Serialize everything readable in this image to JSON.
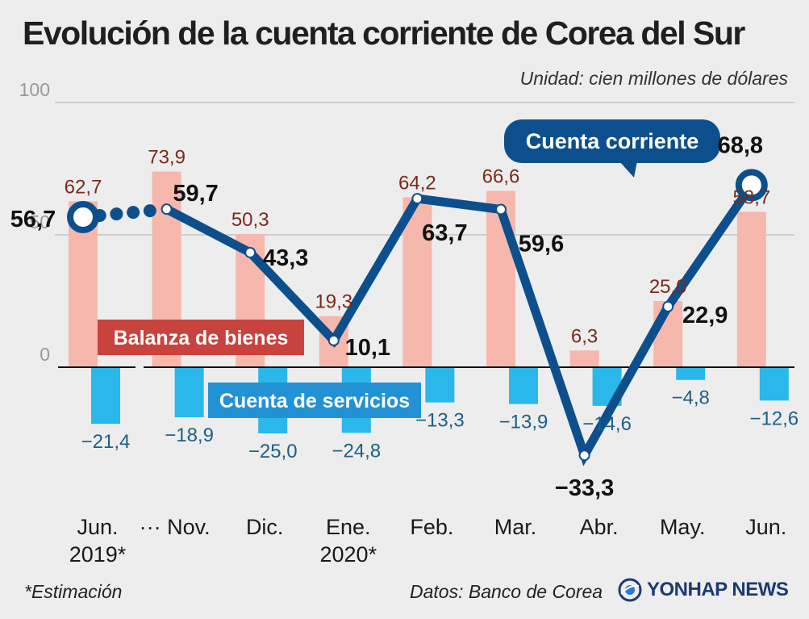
{
  "title": "Evolución de la cuenta corriente de Corea del Sur",
  "unit": "Unidad: cien millones de dólares",
  "footnote": "*Estimación",
  "source": "Datos: Banco de Corea",
  "logo_text": "YONHAP NEWS",
  "colors": {
    "goods_bar": "#f6b7ad",
    "goods_label": "#7a2a1c",
    "services_bar": "#2bb7ea",
    "services_label": "#1d5f87",
    "line": "#0c4f8c",
    "goods_tag": "#c8433d",
    "services_tag": "#2392d5"
  },
  "chart_data": {
    "type": "bar+line",
    "categories": [
      [
        "Jun.",
        "2019*"
      ],
      [
        "··· Nov."
      ],
      [
        "Dic."
      ],
      [
        "Ene.",
        "2020*"
      ],
      [
        "Feb."
      ],
      [
        "Mar."
      ],
      [
        "Abr."
      ],
      [
        "May."
      ],
      [
        "Jun."
      ]
    ],
    "ylim": [
      -40,
      100
    ],
    "yticks": [
      0,
      50,
      100
    ],
    "series": [
      {
        "name": "Balanza de bienes",
        "kind": "bar",
        "values": [
          62.7,
          73.9,
          50.3,
          19.3,
          64.2,
          66.6,
          6.3,
          25.0,
          58.7
        ],
        "labels": [
          "62,7",
          "73,9",
          "50,3",
          "19,3",
          "64,2",
          "66,6",
          "6,3",
          "25,0",
          "58,7"
        ]
      },
      {
        "name": "Cuenta de servicios",
        "kind": "bar",
        "values": [
          -21.4,
          -18.9,
          -25.0,
          -24.8,
          -13.3,
          -13.9,
          -14.6,
          -4.8,
          -12.6
        ],
        "labels": [
          "−21,4",
          "−18,9",
          "−25,0",
          "−24,8",
          "−13,3",
          "−13,9",
          "−14,6",
          "−4,8",
          "−12,6"
        ]
      },
      {
        "name": "Cuenta corriente",
        "kind": "line",
        "values": [
          56.7,
          59.7,
          43.3,
          10.1,
          63.7,
          59.6,
          -33.3,
          22.9,
          68.8
        ],
        "labels": [
          "56,7",
          "59,7",
          "43,3",
          "10,1",
          "63,7",
          "59,6",
          "−33,3",
          "22,9",
          "68,8"
        ]
      }
    ]
  }
}
